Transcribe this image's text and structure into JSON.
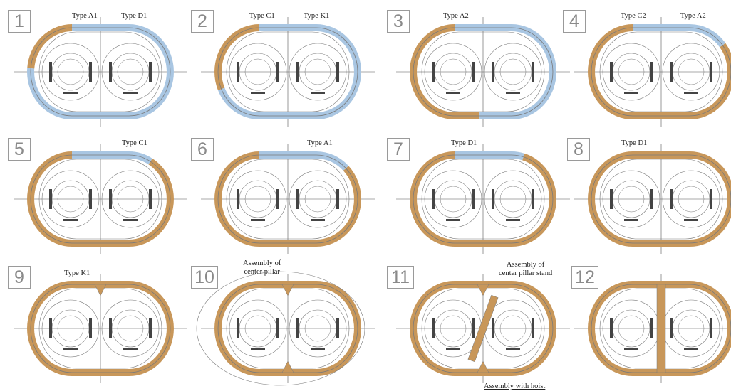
{
  "steps": [
    {
      "number": "1",
      "labels": [
        "Type A1",
        "Type D1"
      ]
    },
    {
      "number": "2",
      "labels": [
        "Type C1",
        "Type K1"
      ]
    },
    {
      "number": "3",
      "labels": [
        "Type A2"
      ]
    },
    {
      "number": "4",
      "labels": [
        "Type C2",
        "Type A2"
      ]
    },
    {
      "number": "5",
      "labels": [
        "Type C1"
      ]
    },
    {
      "number": "6",
      "labels": [
        "Type A1"
      ]
    },
    {
      "number": "7",
      "labels": [
        "Type D1"
      ]
    },
    {
      "number": "8",
      "labels": [
        "Type D1"
      ]
    },
    {
      "number": "9",
      "labels": [
        "Type K1"
      ]
    },
    {
      "number": "10",
      "labels": [
        "Assembly of\ncenter pillar"
      ]
    },
    {
      "number": "11",
      "labels": [
        "Assembly of\ncenter pillar stand",
        "Assembly with hoist"
      ]
    },
    {
      "number": "12",
      "labels": []
    }
  ],
  "colors": {
    "assembled_segment": "#c8975a",
    "pending_segment": "#a9c6e2",
    "outline": "#7a7a7a",
    "crosshair": "#555555",
    "machinery": "#444444"
  },
  "icons": [
    "erector-machine-icon",
    "segment-piece-icon"
  ]
}
